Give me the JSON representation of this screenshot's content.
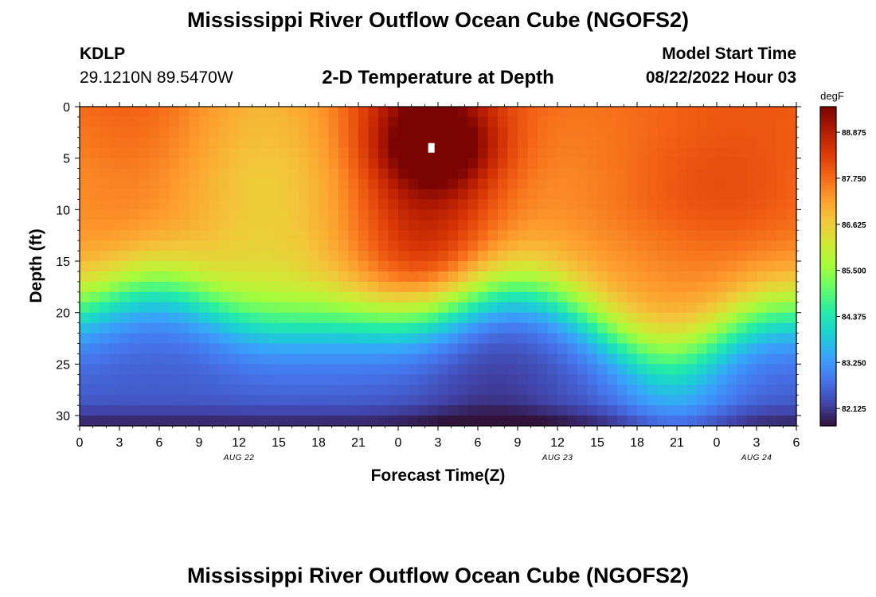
{
  "header": {
    "title": "Mississippi River Outflow Ocean Cube (NGOFS2)",
    "station": "KDLP",
    "coords": "29.1210N  89.5470W",
    "subtitle": "2-D Temperature at Depth",
    "model_start_label": "Model Start Time",
    "model_start_value": "08/22/2022 Hour 03"
  },
  "footer": {
    "title": "Mississippi River Outflow Ocean Cube (NGOFS2)"
  },
  "colors": {
    "colormap": [
      "#30123b",
      "#4145ab",
      "#4675ed",
      "#39a2fc",
      "#1bcfd4",
      "#24eca6",
      "#61fc6c",
      "#a4fc3b",
      "#d1e834",
      "#f3c63a",
      "#fe9b2d",
      "#f36315",
      "#d93806",
      "#b11901",
      "#7a0402"
    ]
  },
  "chart_data": {
    "type": "heatmap",
    "xlabel": "Forecast Time(Z)",
    "ylabel": "Depth (ft)",
    "xlim": [
      0,
      54
    ],
    "ylim": [
      0,
      31
    ],
    "x_ticks": [
      0,
      3,
      6,
      9,
      12,
      15,
      18,
      21,
      24,
      27,
      30,
      33,
      36,
      39,
      42,
      45,
      48,
      51,
      54
    ],
    "x_tick_labels": [
      "0",
      "3",
      "6",
      "9",
      "12",
      "15",
      "18",
      "21",
      "0",
      "3",
      "6",
      "9",
      "12",
      "15",
      "18",
      "21",
      "0",
      "3",
      "6"
    ],
    "date_labels": [
      {
        "text": "AUG 22",
        "x": 12
      },
      {
        "text": "AUG 23",
        "x": 36
      },
      {
        "text": "AUG 24",
        "x": 51
      }
    ],
    "y_ticks": [
      0,
      5,
      10,
      15,
      20,
      25,
      30
    ],
    "y_tick_labels": [
      "0",
      "5",
      "10",
      "15",
      "20",
      "25",
      "30"
    ],
    "colorbar": {
      "unit": "degF",
      "range": [
        81.7,
        89.5
      ],
      "ticks": [
        82.125,
        83.25,
        84.375,
        85.5,
        86.625,
        87.75,
        88.875
      ],
      "tick_labels": [
        "82.125",
        "83.250",
        "84.375",
        "85.500",
        "86.625",
        "87.750",
        "88.875"
      ]
    },
    "marker": {
      "x": 26.5,
      "y": 4
    },
    "grid": false,
    "legend": "right"
  }
}
